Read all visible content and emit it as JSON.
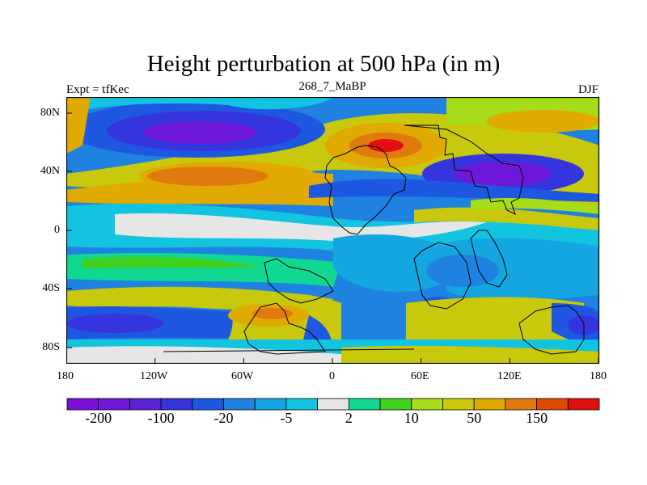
{
  "figure": {
    "title": "Height perturbation at 500 hPa (in m)",
    "left_label": "Expt = tfKec",
    "center_label": "268_7_MaBP",
    "right_label": "DJF"
  },
  "axes": {
    "x_ticks": [
      "180",
      "120W",
      "60W",
      "0",
      "60E",
      "120E",
      "180"
    ],
    "y_ticks": [
      "80N",
      "40N",
      "0",
      "40S",
      "80S"
    ]
  },
  "colorbar": {
    "colors": [
      "#7b0ed8",
      "#6d18d8",
      "#5a22d4",
      "#3535e0",
      "#1e58e0",
      "#1f82e0",
      "#13a6e0",
      "#13c4e0",
      "#e6e6e6",
      "#10d890",
      "#40d020",
      "#a6dc18",
      "#c8c80c",
      "#e0aa00",
      "#e07a10",
      "#e04a00",
      "#e01010"
    ],
    "labels": [
      "-200",
      "-100",
      "-20",
      "-5",
      "2",
      "10",
      "50",
      "150"
    ],
    "label_colors": [
      "#000000"
    ]
  }
}
